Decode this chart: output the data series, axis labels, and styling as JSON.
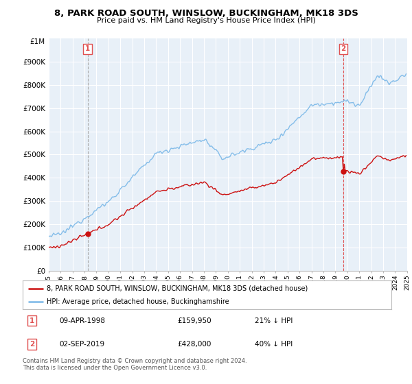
{
  "title": "8, PARK ROAD SOUTH, WINSLOW, BUCKINGHAM, MK18 3DS",
  "subtitle": "Price paid vs. HM Land Registry's House Price Index (HPI)",
  "hpi_color": "#7ab8e8",
  "price_color": "#cc1111",
  "marker_color": "#cc1111",
  "dashed1_color": "#aaaaaa",
  "dashed2_color": "#e05050",
  "background_color": "#ffffff",
  "plot_bg_color": "#e8f0f8",
  "grid_color": "#ffffff",
  "ylim": [
    0,
    1000000
  ],
  "yticks": [
    0,
    100000,
    200000,
    300000,
    400000,
    500000,
    600000,
    700000,
    800000,
    900000
  ],
  "ytick_labels": [
    "£0",
    "£100K",
    "£200K",
    "£300K",
    "£400K",
    "£500K",
    "£600K",
    "£700K",
    "£800K",
    "£900K"
  ],
  "ylim_top_label": "£1M",
  "purchase1_year": 1998.27,
  "purchase1_price": 159950,
  "purchase2_year": 2019.67,
  "purchase2_price": 428000,
  "legend_label_price": "8, PARK ROAD SOUTH, WINSLOW, BUCKINGHAM, MK18 3DS (detached house)",
  "legend_label_hpi": "HPI: Average price, detached house, Buckinghamshire",
  "annotation1_label": "1",
  "annotation1_date": "09-APR-1998",
  "annotation1_price": "£159,950",
  "annotation1_hpi": "21% ↓ HPI",
  "annotation2_label": "2",
  "annotation2_date": "02-SEP-2019",
  "annotation2_price": "£428,000",
  "annotation2_hpi": "40% ↓ HPI",
  "footer": "Contains HM Land Registry data © Crown copyright and database right 2024.\nThis data is licensed under the Open Government Licence v3.0."
}
